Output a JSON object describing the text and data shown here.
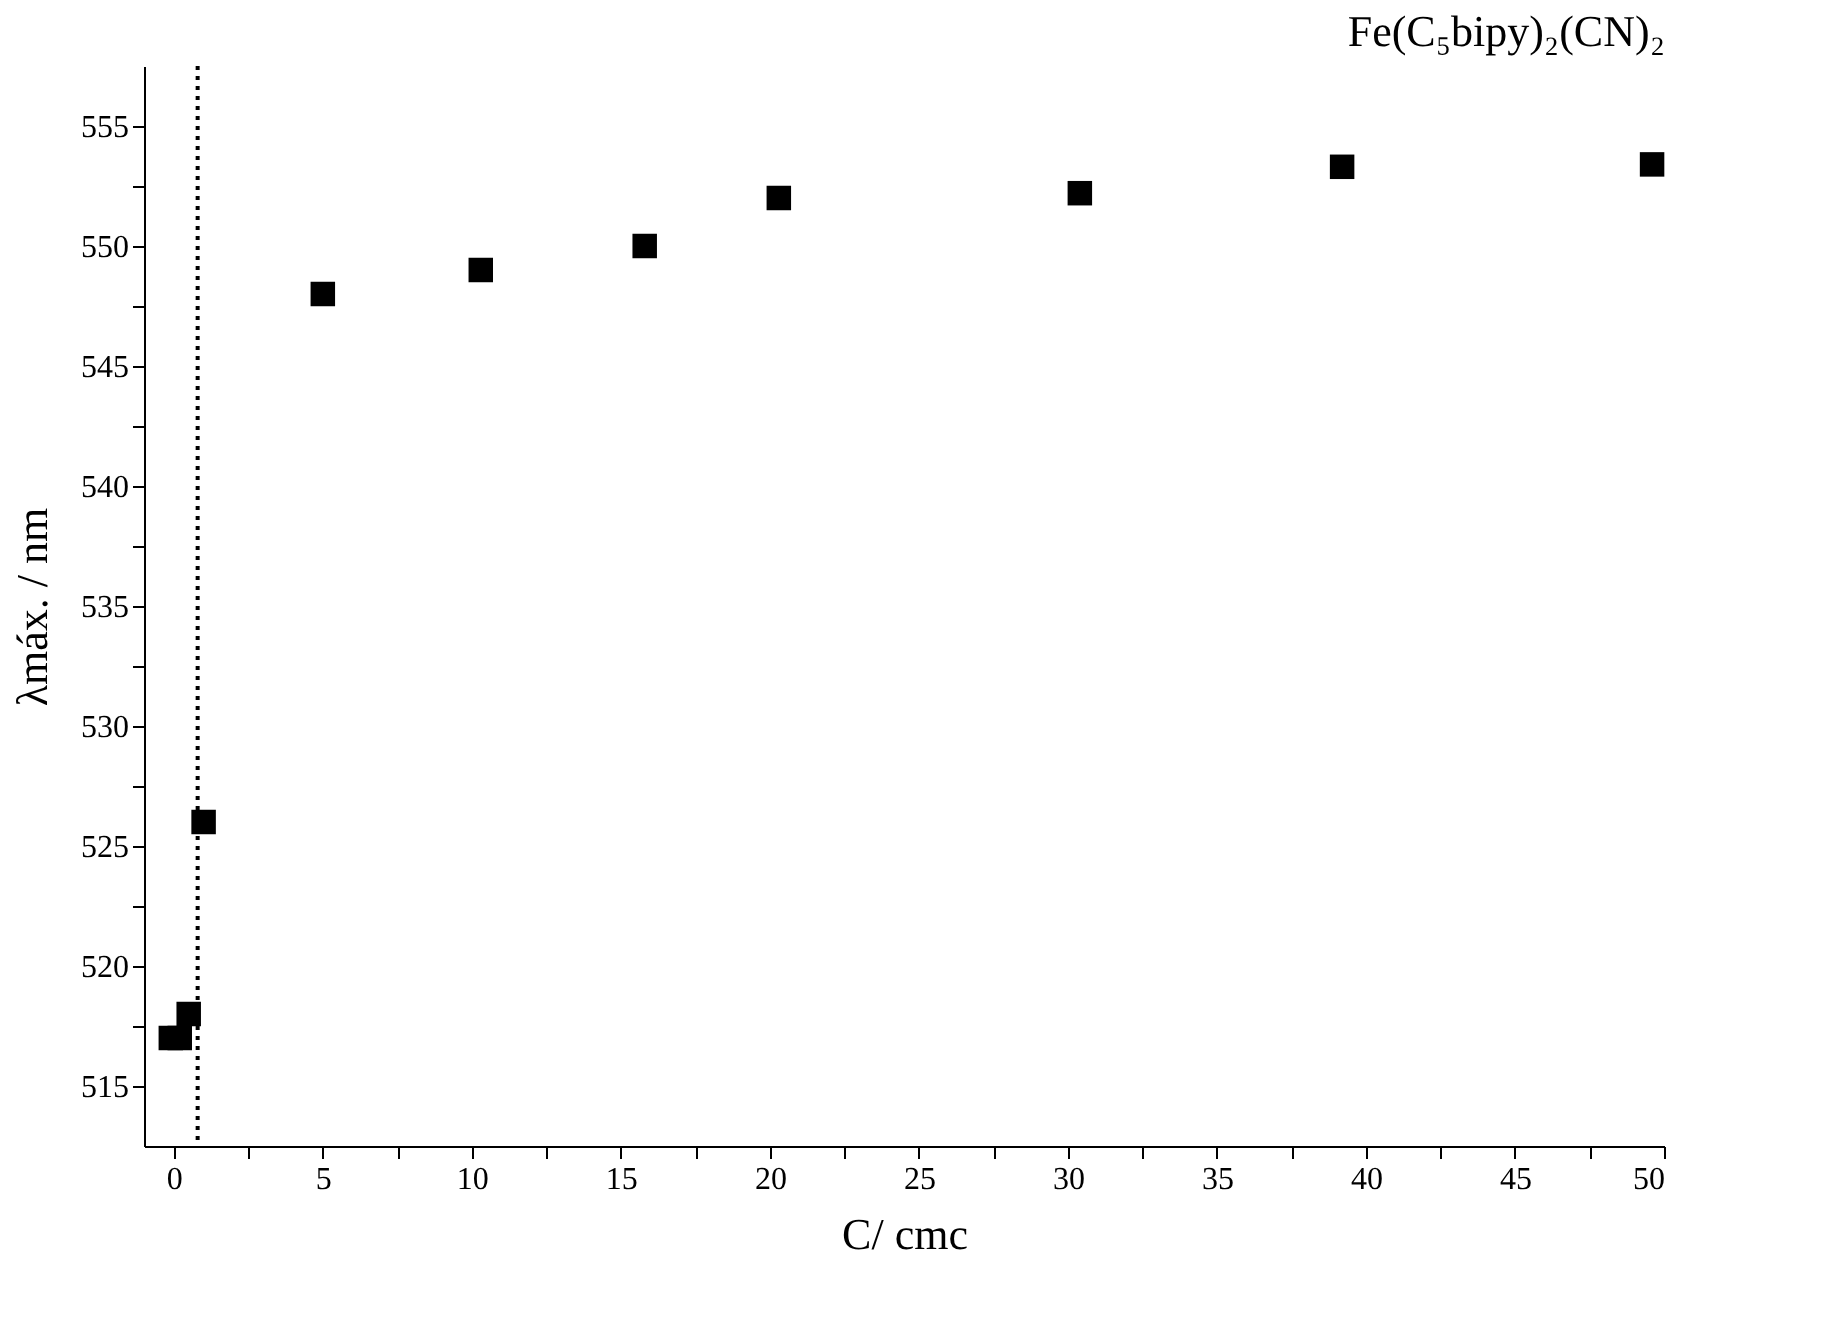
{
  "chart_data": {
    "type": "scatter",
    "title": "Fe(C₅bipy)₂(CN)₂",
    "xlabel": "C/ cmc",
    "ylabel": "λmáx. / nm",
    "x": [
      -0.1,
      0.2,
      0.5,
      1.0,
      5.0,
      10.3,
      15.8,
      20.3,
      30.4,
      39.2,
      49.6
    ],
    "series": [
      {
        "color": "#000000",
        "values": [
          517,
          517,
          518,
          526,
          548,
          549,
          550,
          552,
          552.2,
          553.3,
          553.4
        ]
      }
    ],
    "xlim": [
      -1,
      50
    ],
    "ylim": [
      512.5,
      557.5
    ],
    "xticks": [
      0,
      {
        "value": 2.5,
        "label": null
      },
      5,
      {
        "value": 7.5,
        "label": null
      },
      10,
      {
        "value": 12.5,
        "label": null
      },
      15,
      {
        "value": 17.5,
        "label": null
      },
      20,
      {
        "value": 22.5,
        "label": null
      },
      25,
      {
        "value": 27.5,
        "label": null
      },
      30,
      {
        "value": 32.5,
        "label": null
      },
      35,
      {
        "value": 37.5,
        "label": null
      },
      40,
      {
        "value": 42.5,
        "label": null
      },
      45,
      {
        "value": 47.5,
        "label": null
      },
      50
    ],
    "yticks": [
      515,
      {
        "value": 517.5,
        "label": null
      },
      520,
      {
        "value": 522.5,
        "label": null
      },
      525,
      {
        "value": 527.5,
        "label": null
      },
      530,
      {
        "value": 532.5,
        "label": null
      },
      535,
      {
        "value": 537.5,
        "label": null
      },
      540,
      {
        "value": 542.5,
        "label": null
      },
      545,
      {
        "value": 547.5,
        "label": null
      },
      550,
      {
        "value": 552.5,
        "label": null
      },
      555
    ],
    "ref_lines": [
      {
        "axis": "x",
        "value": 0.8,
        "line_style": "dotted",
        "color": "#000000"
      }
    ],
    "marker": "square",
    "grid": false
  }
}
